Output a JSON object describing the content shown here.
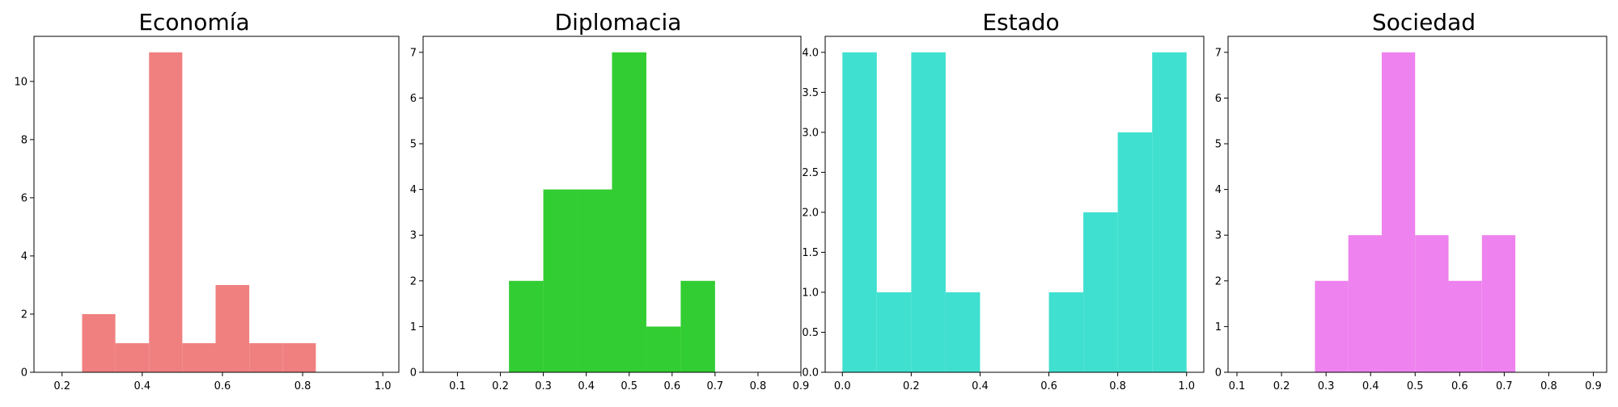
{
  "chart_data": [
    {
      "type": "histogram",
      "title": "Economía",
      "color": "#f08080",
      "xlim": [
        0.13,
        1.04
      ],
      "ylim": [
        0,
        11.55
      ],
      "xticks": [
        0.2,
        0.4,
        0.6,
        0.8,
        1.0
      ],
      "xtick_labels": [
        "0.2",
        "0.4",
        "0.6",
        "0.8",
        "1.0"
      ],
      "yticks": [
        0,
        2,
        4,
        6,
        8,
        10
      ],
      "ytick_labels": [
        "0",
        "2",
        "4",
        "6",
        "8",
        "10"
      ],
      "bins": [
        {
          "x0": 0.25,
          "x1": 0.333,
          "count": 2
        },
        {
          "x0": 0.333,
          "x1": 0.417,
          "count": 1
        },
        {
          "x0": 0.417,
          "x1": 0.5,
          "count": 11
        },
        {
          "x0": 0.5,
          "x1": 0.583,
          "count": 1
        },
        {
          "x0": 0.583,
          "x1": 0.667,
          "count": 3
        },
        {
          "x0": 0.667,
          "x1": 0.75,
          "count": 1
        },
        {
          "x0": 0.75,
          "x1": 0.833,
          "count": 1
        }
      ]
    },
    {
      "type": "histogram",
      "title": "Diplomacia",
      "color": "#32cd32",
      "xlim": [
        0.02,
        0.9
      ],
      "ylim": [
        0,
        7.35
      ],
      "xticks": [
        0.1,
        0.2,
        0.3,
        0.4,
        0.5,
        0.6,
        0.7,
        0.8,
        0.9
      ],
      "xtick_labels": [
        "0.1",
        "0.2",
        "0.3",
        "0.4",
        "0.5",
        "0.6",
        "0.7",
        "0.8",
        "0.9"
      ],
      "yticks": [
        0,
        1,
        2,
        3,
        4,
        5,
        6,
        7
      ],
      "ytick_labels": [
        "0",
        "1",
        "2",
        "3",
        "4",
        "5",
        "6",
        "7"
      ],
      "bins": [
        {
          "x0": 0.22,
          "x1": 0.3,
          "count": 2
        },
        {
          "x0": 0.3,
          "x1": 0.38,
          "count": 4
        },
        {
          "x0": 0.38,
          "x1": 0.46,
          "count": 4
        },
        {
          "x0": 0.46,
          "x1": 0.54,
          "count": 7
        },
        {
          "x0": 0.54,
          "x1": 0.62,
          "count": 1
        },
        {
          "x0": 0.62,
          "x1": 0.7,
          "count": 2
        }
      ]
    },
    {
      "type": "histogram",
      "title": "Estado",
      "color": "#40e0d0",
      "xlim": [
        -0.05,
        1.05
      ],
      "ylim": [
        0,
        4.2
      ],
      "xticks": [
        0.0,
        0.2,
        0.4,
        0.6,
        0.8,
        1.0
      ],
      "xtick_labels": [
        "0.0",
        "0.2",
        "0.4",
        "0.6",
        "0.8",
        "1.0"
      ],
      "yticks": [
        0,
        0.5,
        1.0,
        1.5,
        2.0,
        2.5,
        3.0,
        3.5,
        4.0
      ],
      "ytick_labels": [
        "0.0",
        "0.5",
        "1.0",
        "1.5",
        "2.0",
        "2.5",
        "3.0",
        "3.5",
        "4.0"
      ],
      "bins": [
        {
          "x0": 0.0,
          "x1": 0.1,
          "count": 4
        },
        {
          "x0": 0.1,
          "x1": 0.2,
          "count": 1
        },
        {
          "x0": 0.2,
          "x1": 0.3,
          "count": 4
        },
        {
          "x0": 0.3,
          "x1": 0.4,
          "count": 1
        },
        {
          "x0": 0.6,
          "x1": 0.7,
          "count": 1
        },
        {
          "x0": 0.7,
          "x1": 0.8,
          "count": 2
        },
        {
          "x0": 0.8,
          "x1": 0.9,
          "count": 3
        },
        {
          "x0": 0.9,
          "x1": 1.0,
          "count": 4
        }
      ]
    },
    {
      "type": "histogram",
      "title": "Sociedad",
      "color": "#ee82ee",
      "xlim": [
        0.08,
        0.93
      ],
      "ylim": [
        0,
        7.35
      ],
      "xticks": [
        0.1,
        0.2,
        0.3,
        0.4,
        0.5,
        0.6,
        0.7,
        0.8,
        0.9
      ],
      "xtick_labels": [
        "0.1",
        "0.2",
        "0.3",
        "0.4",
        "0.5",
        "0.6",
        "0.7",
        "0.8",
        "0.9"
      ],
      "yticks": [
        0,
        1,
        2,
        3,
        4,
        5,
        6,
        7
      ],
      "ytick_labels": [
        "0",
        "1",
        "2",
        "3",
        "4",
        "5",
        "6",
        "7"
      ],
      "bins": [
        {
          "x0": 0.275,
          "x1": 0.35,
          "count": 2
        },
        {
          "x0": 0.35,
          "x1": 0.425,
          "count": 3
        },
        {
          "x0": 0.425,
          "x1": 0.5,
          "count": 7
        },
        {
          "x0": 0.5,
          "x1": 0.575,
          "count": 3
        },
        {
          "x0": 0.575,
          "x1": 0.65,
          "count": 2
        },
        {
          "x0": 0.65,
          "x1": 0.725,
          "count": 3
        }
      ]
    }
  ]
}
